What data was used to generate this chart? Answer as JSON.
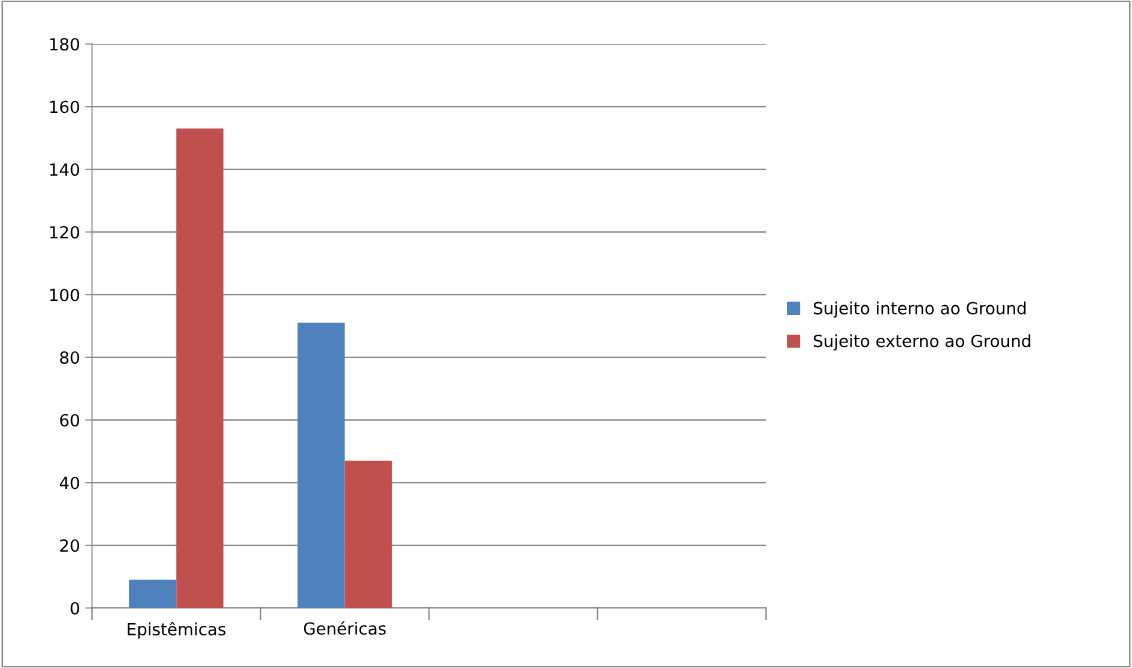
{
  "chart_data": {
    "type": "bar",
    "categories": [
      "Epistêmicas",
      "Genéricas",
      null,
      null
    ],
    "series": [
      {
        "name": "Sujeito interno ao Ground",
        "color": "#4f81bd",
        "values": [
          9,
          91,
          null,
          null
        ]
      },
      {
        "name": "Sujeito externo ao Ground",
        "color": "#c0504d",
        "values": [
          153,
          47,
          null,
          null
        ]
      }
    ],
    "ylim": [
      0,
      180
    ],
    "yticks": [
      0,
      20,
      40,
      60,
      80,
      100,
      120,
      140,
      160,
      180
    ],
    "grid": "y",
    "legend": "right"
  }
}
